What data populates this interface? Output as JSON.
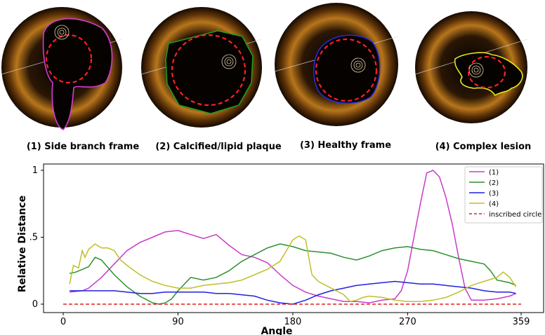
{
  "panels": [
    {
      "caption": "(1) Side branch frame",
      "contour_color": "#d63ad6"
    },
    {
      "caption": "(2) Calcified/lipid plaque",
      "contour_color": "#1f9a1f"
    },
    {
      "caption": "(3) Healthy frame",
      "contour_color": "#2a2ad8"
    },
    {
      "caption": "(4) Complex lesion",
      "contour_color": "#e6e61e"
    }
  ],
  "chart_data": {
    "type": "line",
    "xlabel": "Angle",
    "ylabel": "Relative Distance",
    "xlim": [
      0,
      359
    ],
    "ylim": [
      0,
      1
    ],
    "xticks": [
      0,
      90,
      180,
      270,
      359
    ],
    "yticks": [
      0,
      0.5,
      1
    ],
    "ytick_labels": [
      "0",
      ".5",
      "1"
    ],
    "legend_position": "top-right",
    "series": [
      {
        "name": "(1)",
        "color": "#c93ac9",
        "dashed": false,
        "x": [
          5,
          15,
          20,
          30,
          40,
          50,
          60,
          70,
          80,
          90,
          100,
          110,
          120,
          130,
          140,
          150,
          160,
          170,
          180,
          190,
          200,
          210,
          220,
          230,
          240,
          250,
          260,
          265,
          270,
          275,
          280,
          285,
          290,
          295,
          300,
          305,
          310,
          315,
          320,
          330,
          340,
          350,
          355
        ],
        "y": [
          0.09,
          0.1,
          0.12,
          0.2,
          0.3,
          0.4,
          0.46,
          0.5,
          0.54,
          0.55,
          0.52,
          0.49,
          0.52,
          0.44,
          0.37,
          0.35,
          0.31,
          0.22,
          0.14,
          0.09,
          0.06,
          0.04,
          0.02,
          0.02,
          0.01,
          0.03,
          0.04,
          0.1,
          0.25,
          0.5,
          0.75,
          0.98,
          1.0,
          0.95,
          0.8,
          0.6,
          0.35,
          0.12,
          0.03,
          0.03,
          0.04,
          0.06,
          0.08
        ]
      },
      {
        "name": "(2)",
        "color": "#2c912c",
        "dashed": false,
        "x": [
          5,
          10,
          20,
          25,
          30,
          40,
          50,
          60,
          70,
          75,
          80,
          85,
          90,
          100,
          110,
          120,
          130,
          140,
          150,
          160,
          170,
          180,
          190,
          200,
          210,
          220,
          230,
          240,
          250,
          260,
          270,
          280,
          290,
          300,
          310,
          320,
          330,
          335,
          340,
          350,
          355
        ],
        "y": [
          0.23,
          0.24,
          0.28,
          0.35,
          0.33,
          0.22,
          0.13,
          0.06,
          0.01,
          0.0,
          0.01,
          0.04,
          0.1,
          0.2,
          0.18,
          0.2,
          0.25,
          0.32,
          0.37,
          0.42,
          0.45,
          0.43,
          0.4,
          0.39,
          0.38,
          0.35,
          0.33,
          0.36,
          0.4,
          0.42,
          0.43,
          0.41,
          0.4,
          0.37,
          0.34,
          0.32,
          0.3,
          0.25,
          0.18,
          0.16,
          0.14
        ]
      },
      {
        "name": "(3)",
        "color": "#2020e0",
        "dashed": false,
        "x": [
          5,
          20,
          30,
          40,
          50,
          60,
          70,
          80,
          90,
          100,
          110,
          120,
          130,
          140,
          150,
          160,
          170,
          180,
          190,
          200,
          210,
          220,
          230,
          240,
          250,
          260,
          270,
          280,
          290,
          300,
          310,
          320,
          330,
          340,
          350,
          355
        ],
        "y": [
          0.1,
          0.1,
          0.1,
          0.1,
          0.09,
          0.08,
          0.08,
          0.09,
          0.09,
          0.09,
          0.09,
          0.08,
          0.08,
          0.07,
          0.06,
          0.03,
          0.01,
          0.0,
          0.03,
          0.07,
          0.1,
          0.12,
          0.14,
          0.15,
          0.16,
          0.17,
          0.16,
          0.15,
          0.15,
          0.14,
          0.13,
          0.12,
          0.1,
          0.09,
          0.09,
          0.08
        ]
      },
      {
        "name": "(4)",
        "color": "#bfbf2a",
        "dashed": false,
        "x": [
          5,
          8,
          12,
          15,
          17,
          20,
          25,
          30,
          35,
          40,
          45,
          50,
          60,
          70,
          80,
          90,
          100,
          110,
          120,
          130,
          140,
          150,
          160,
          170,
          175,
          180,
          185,
          190,
          195,
          200,
          210,
          220,
          225,
          230,
          235,
          240,
          250,
          260,
          270,
          280,
          290,
          300,
          310,
          320,
          330,
          340,
          345,
          350,
          355
        ],
        "y": [
          0.15,
          0.29,
          0.27,
          0.4,
          0.35,
          0.41,
          0.45,
          0.42,
          0.42,
          0.4,
          0.33,
          0.29,
          0.22,
          0.17,
          0.14,
          0.12,
          0.12,
          0.14,
          0.15,
          0.16,
          0.18,
          0.22,
          0.26,
          0.32,
          0.4,
          0.48,
          0.51,
          0.48,
          0.22,
          0.17,
          0.12,
          0.07,
          0.02,
          0.03,
          0.05,
          0.06,
          0.05,
          0.03,
          0.02,
          0.02,
          0.03,
          0.05,
          0.09,
          0.14,
          0.17,
          0.2,
          0.24,
          0.2,
          0.13
        ]
      },
      {
        "name": "inscribed circle",
        "color": "#e02020",
        "dashed": true,
        "x": [
          0,
          359
        ],
        "y": [
          0.0,
          0.0
        ]
      }
    ]
  }
}
